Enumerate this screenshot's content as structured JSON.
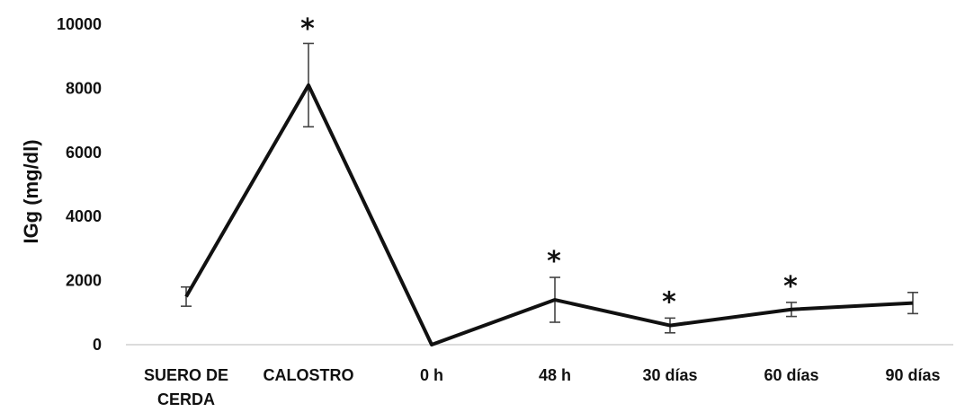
{
  "chart_data": {
    "type": "line",
    "title": "",
    "xlabel": "",
    "ylabel": "IGg (mg/dl)",
    "ylim": [
      0,
      10000
    ],
    "yticks": [
      0,
      2000,
      4000,
      6000,
      8000,
      10000
    ],
    "ytick_labels": [
      "0",
      "2000",
      "4000",
      "6000",
      "8000",
      "10000"
    ],
    "categories": [
      [
        "SUERO DE",
        "CERDA"
      ],
      [
        "CALOSTRO"
      ],
      [
        "0 h"
      ],
      [
        "48 h"
      ],
      [
        "30 días"
      ],
      [
        "60 días"
      ],
      [
        "90 días"
      ]
    ],
    "series": [
      {
        "values": [
          1500,
          8100,
          0,
          1400,
          600,
          1100,
          1300
        ],
        "errors": [
          300,
          1300,
          0,
          700,
          230,
          220,
          330
        ],
        "significance": [
          "",
          "*",
          "",
          "*",
          "*",
          "*",
          ""
        ]
      }
    ],
    "grid": false,
    "legend": "none",
    "colors": {
      "line": "#111111",
      "axis": "#d0d0d0",
      "text": "#111111"
    }
  }
}
